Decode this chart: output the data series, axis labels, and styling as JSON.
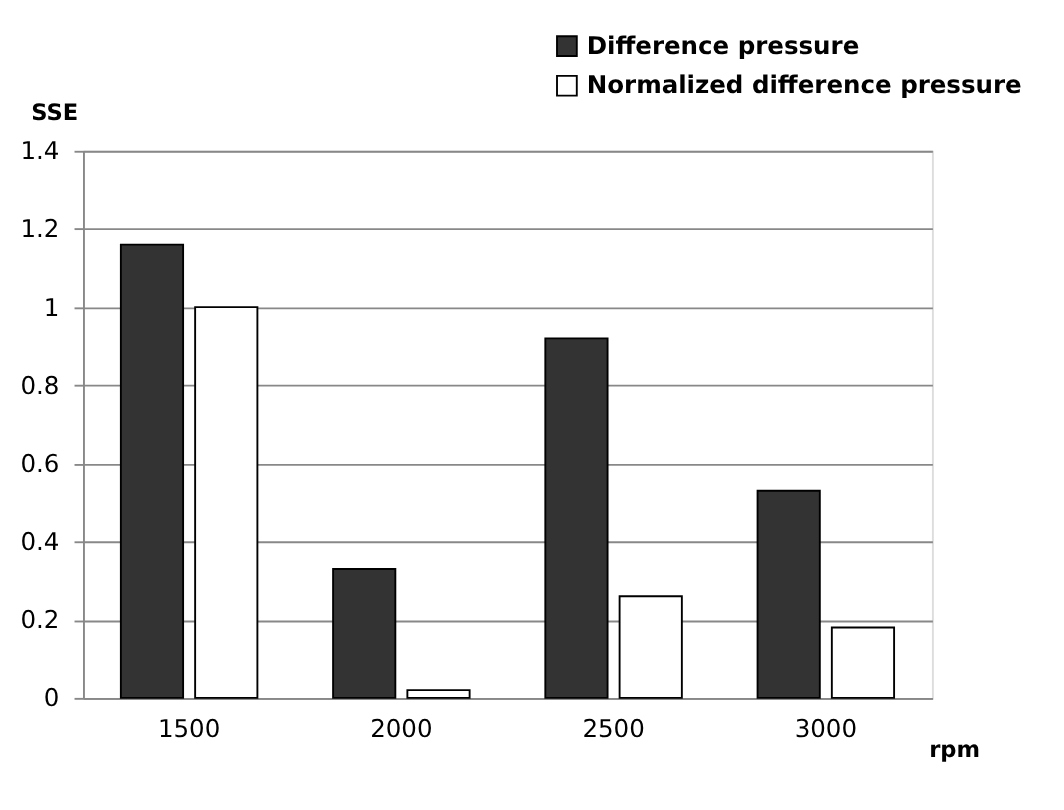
{
  "chart_data": {
    "type": "bar",
    "xlabel": "rpm",
    "ylabel": "SSE",
    "categories": [
      "1500",
      "2000",
      "2500",
      "3000"
    ],
    "series": [
      {
        "name": "Difference pressure",
        "color": "#333333",
        "values": [
          1.16,
          0.33,
          0.92,
          0.53
        ]
      },
      {
        "name": "Normalized difference pressure",
        "color": "#ffffff",
        "values": [
          1.0,
          0.02,
          0.26,
          0.18
        ]
      }
    ],
    "ylim": [
      0,
      1.4
    ],
    "yticks": [
      0,
      0.2,
      0.4,
      0.6,
      0.8,
      1,
      1.2,
      1.4
    ],
    "grid": "y",
    "legend": "top right"
  }
}
